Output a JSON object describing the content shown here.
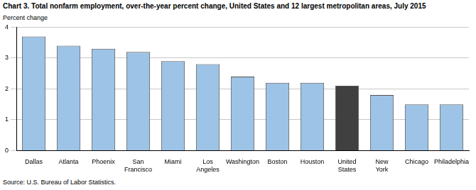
{
  "chart_data": {
    "type": "bar",
    "title": "Chart 3. Total nonfarm employment, over-the-year percent change, United States and 12 largest metropolitan areas, July 2015",
    "y_label": "Percent change",
    "source": "Source: U.S. Bureau of Labor Statistics.",
    "categories": [
      "Dallas",
      "Atlanta",
      "Phoenix",
      "San Francisco",
      "Miami",
      "Los Angeles",
      "Washington",
      "Boston",
      "Houston",
      "United States",
      "New York",
      "Chicago",
      "Philadelphia"
    ],
    "values": [
      3.7,
      3.4,
      3.3,
      3.2,
      2.9,
      2.8,
      2.4,
      2.2,
      2.2,
      2.1,
      1.8,
      1.5,
      1.5
    ],
    "colors": [
      "#9dc3e6",
      "#9dc3e6",
      "#9dc3e6",
      "#9dc3e6",
      "#9dc3e6",
      "#9dc3e6",
      "#9dc3e6",
      "#9dc3e6",
      "#9dc3e6",
      "#404040",
      "#9dc3e6",
      "#9dc3e6",
      "#9dc3e6"
    ],
    "ylim": [
      0,
      4
    ],
    "yticks": [
      0,
      1,
      2,
      3,
      4
    ],
    "grid": true
  }
}
